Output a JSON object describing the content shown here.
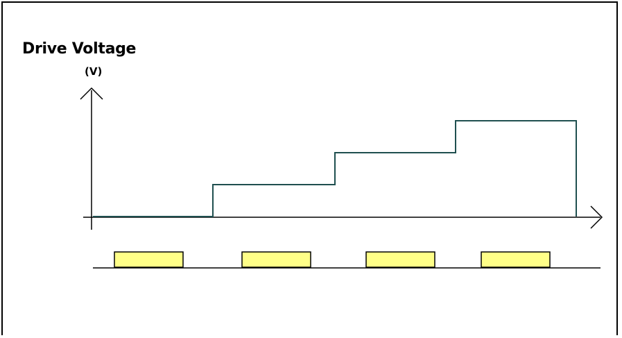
{
  "chart_data": {
    "type": "line",
    "title": "",
    "ylabel": "Drive Voltage",
    "yunit": "(V)",
    "xlabel": "",
    "step_levels": [
      0,
      1,
      2,
      3
    ],
    "ylim": [
      0,
      3.5
    ],
    "grid": false,
    "legend": "none",
    "colors": {
      "waveform": "#1f4f4f",
      "pulse_fill": "#ffff88",
      "pulse_stroke": "#000000",
      "axis": "#000000"
    },
    "pulses": 4
  }
}
